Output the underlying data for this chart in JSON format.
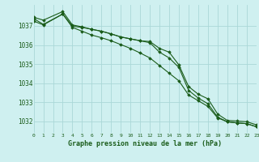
{
  "background_color": "#cff0f0",
  "grid_color": "#aad8d8",
  "line_color": "#1a5c1a",
  "xlabel": "Graphe pression niveau de la mer (hPa)",
  "xlim": [
    0,
    23
  ],
  "ylim": [
    1031.4,
    1038.1
  ],
  "yticks": [
    1032,
    1033,
    1034,
    1035,
    1036,
    1037
  ],
  "xticks": [
    0,
    1,
    2,
    3,
    4,
    5,
    6,
    7,
    8,
    9,
    10,
    11,
    12,
    13,
    14,
    15,
    16,
    17,
    18,
    19,
    20,
    21,
    22,
    23
  ],
  "series1": {
    "x": [
      0,
      1,
      3,
      4,
      5,
      6,
      7,
      8,
      9,
      10,
      11,
      12,
      13,
      14,
      15,
      16,
      17,
      18,
      19,
      20,
      21,
      22,
      23
    ],
    "y": [
      1037.45,
      1037.3,
      1037.75,
      1037.05,
      1036.95,
      1036.82,
      1036.72,
      1036.58,
      1036.42,
      1036.32,
      1036.22,
      1036.18,
      1035.82,
      1035.62,
      1034.95,
      1033.82,
      1033.42,
      1033.18,
      1032.38,
      1032.05,
      1032.02,
      1031.98,
      1031.82
    ]
  },
  "series2": {
    "x": [
      0,
      1,
      3,
      4,
      5,
      6,
      7,
      8,
      9,
      10,
      11,
      12,
      13,
      14,
      15,
      16,
      17,
      18,
      19,
      20,
      21,
      22,
      23
    ],
    "y": [
      1037.25,
      1037.05,
      1037.62,
      1036.98,
      1036.92,
      1036.82,
      1036.72,
      1036.58,
      1036.42,
      1036.32,
      1036.22,
      1036.12,
      1035.62,
      1035.32,
      1034.82,
      1033.62,
      1033.22,
      1032.92,
      1032.22,
      1031.98,
      1031.92,
      1031.88,
      1031.72
    ]
  },
  "series3": {
    "x": [
      0,
      1,
      3,
      4,
      5,
      6,
      7,
      8,
      9,
      10,
      11,
      12,
      13,
      14,
      15,
      16,
      17,
      18,
      19,
      20,
      21,
      22,
      23
    ],
    "y": [
      1037.38,
      1037.08,
      1037.62,
      1036.92,
      1036.72,
      1036.52,
      1036.38,
      1036.22,
      1036.02,
      1035.82,
      1035.58,
      1035.32,
      1034.92,
      1034.52,
      1034.12,
      1033.38,
      1033.08,
      1032.78,
      1032.18,
      1031.98,
      1031.92,
      1031.88,
      1031.72
    ]
  }
}
